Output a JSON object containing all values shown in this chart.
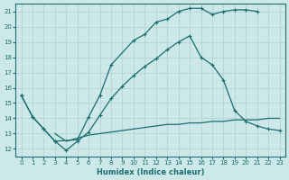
{
  "background_color": "#cde8e8",
  "grid_color": "#b8d8d8",
  "line_color": "#1a6e6e",
  "marker": "+",
  "xlabel": "Humidex (Indice chaleur)",
  "xlim": [
    -0.5,
    23.5
  ],
  "ylim": [
    11.5,
    21.5
  ],
  "xticks": [
    0,
    1,
    2,
    3,
    4,
    5,
    6,
    7,
    8,
    9,
    10,
    11,
    12,
    13,
    14,
    15,
    16,
    17,
    18,
    19,
    20,
    21,
    22,
    23
  ],
  "yticks": [
    12,
    13,
    14,
    15,
    16,
    17,
    18,
    19,
    20,
    21
  ],
  "line1_x": [
    0,
    1,
    2,
    3,
    5,
    6,
    7,
    8,
    10,
    11,
    12,
    13,
    14,
    15,
    16,
    17,
    18,
    19,
    20,
    21
  ],
  "line1_y": [
    15.5,
    14.1,
    13.3,
    12.5,
    12.6,
    14.1,
    15.5,
    17.5,
    19.1,
    19.5,
    20.3,
    20.5,
    21.0,
    21.2,
    21.2,
    20.8,
    21.0,
    21.1,
    21.1,
    21.0
  ],
  "line2_x": [
    0,
    1,
    2,
    3,
    4,
    5,
    6,
    7,
    8,
    9,
    10,
    11,
    12,
    13,
    14,
    15,
    16,
    17,
    18,
    19,
    20,
    21,
    22,
    23
  ],
  "line2_y": [
    15.5,
    14.1,
    13.3,
    12.5,
    11.9,
    12.5,
    13.1,
    14.2,
    15.3,
    16.1,
    16.8,
    17.4,
    17.9,
    18.5,
    19.0,
    19.4,
    18.0,
    17.5,
    16.5,
    14.5,
    13.8,
    13.5,
    13.3,
    13.2
  ],
  "line3_x": [
    3,
    4,
    5,
    6,
    7,
    8,
    9,
    10,
    11,
    12,
    13,
    14,
    15,
    16,
    17,
    18,
    19,
    20,
    21,
    22,
    23
  ],
  "line3_y": [
    13.0,
    12.5,
    12.7,
    12.9,
    13.0,
    13.1,
    13.2,
    13.3,
    13.4,
    13.5,
    13.6,
    13.6,
    13.7,
    13.7,
    13.8,
    13.8,
    13.9,
    13.9,
    13.9,
    14.0,
    14.0
  ]
}
